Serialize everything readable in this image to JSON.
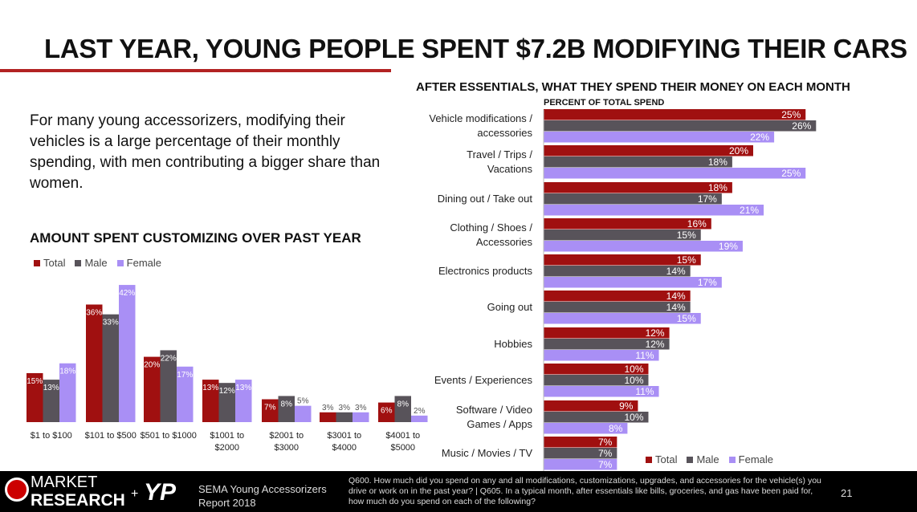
{
  "title": "LAST YEAR, YOUNG PEOPLE SPENT $7.2B MODIFYING THEIR CARS",
  "intro": "For many young accessorizers, modifying their vehicles is a large percentage of their monthly spending, with men contributing a bigger share than women.",
  "colors": {
    "Total": "#a01010",
    "Male": "#58535a",
    "Female": "#a98ff5"
  },
  "footer": {
    "logo_text_1": "MARKET",
    "logo_text_2": "RESEARCH",
    "plus": "+",
    "partner_logo": "YP",
    "report": "SEMA Young Accessorizers Report 2018",
    "question": "Q600. How much did you spend on any and all modifications, customizations, upgrades, and accessories for the vehicle(s) you drive or work on in the past year?  |  Q605. In a typical month, after essentials like bills, groceries, and gas have been paid for, how much do you spend on each of the following?",
    "page": "21"
  },
  "chart_data": [
    {
      "type": "bar",
      "title": "AMOUNT SPENT CUSTOMIZING OVER PAST YEAR",
      "legend": "top-left",
      "categories": [
        "$1 to $100",
        "$101 to $500",
        "$501 to $1000",
        "$1001 to $2000",
        "$2001 to $3000",
        "$3001 to $4000",
        "$4001 to $5000"
      ],
      "series": [
        {
          "name": "Total",
          "values": [
            15,
            36,
            20,
            13,
            7,
            3,
            6
          ]
        },
        {
          "name": "Male",
          "values": [
            13,
            33,
            22,
            12,
            8,
            3,
            8
          ]
        },
        {
          "name": "Female",
          "values": [
            18,
            42,
            17,
            13,
            5,
            3,
            2
          ]
        }
      ]
    },
    {
      "type": "bar",
      "orientation": "horizontal",
      "title": "AFTER ESSENTIALS, WHAT THEY SPEND THEIR MONEY ON EACH MONTH",
      "subtitle": "PERCENT OF TOTAL SPEND",
      "legend": "bottom-right",
      "categories": [
        "Vehicle modifications / accessories",
        "Travel / Trips / Vacations",
        "Dining out / Take out",
        "Clothing / Shoes / Accessories",
        "Electronics products",
        "Going out",
        "Hobbies",
        "Events / Experiences",
        "Software / Video Games / Apps",
        "Music / Movies / TV"
      ],
      "series": [
        {
          "name": "Total",
          "values": [
            25,
            20,
            18,
            16,
            15,
            14,
            12,
            10,
            9,
            7
          ]
        },
        {
          "name": "Male",
          "values": [
            26,
            18,
            17,
            15,
            14,
            14,
            12,
            10,
            10,
            7
          ]
        },
        {
          "name": "Female",
          "values": [
            22,
            25,
            21,
            19,
            17,
            15,
            11,
            11,
            8,
            7
          ]
        }
      ]
    }
  ]
}
